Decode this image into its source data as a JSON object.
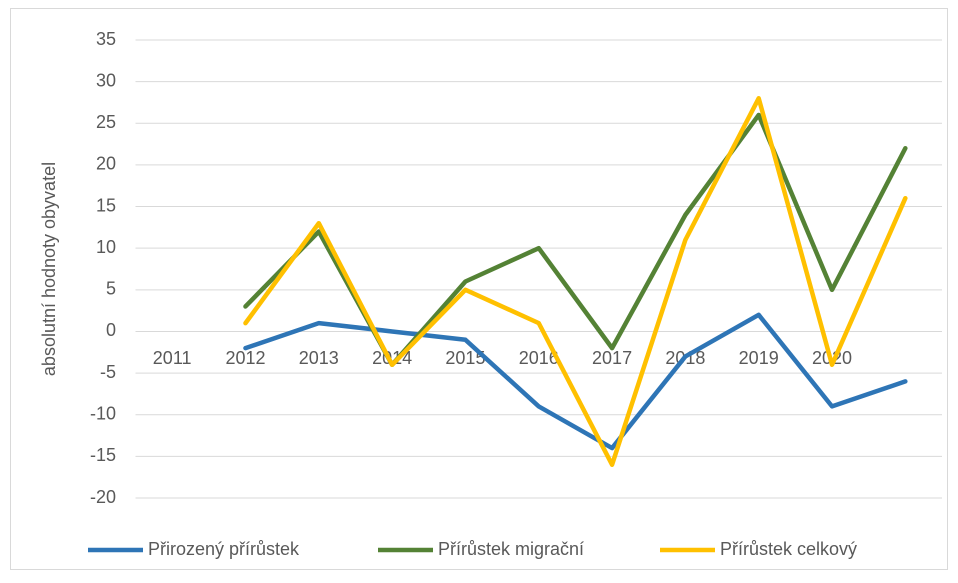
{
  "chart_data": {
    "type": "line",
    "y_axis_label": "absolutní hodnoty obyvatel",
    "categories": [
      "2011",
      "2012",
      "2013",
      "2014",
      "2015",
      "2016",
      "2017",
      "2018",
      "2019",
      "2020",
      null
    ],
    "series": [
      {
        "name": "Přirozený přírůstek",
        "color": "#2e75b6",
        "values": [
          null,
          -2,
          1,
          0,
          -1,
          -9,
          -14,
          -3,
          2,
          -9,
          -6
        ]
      },
      {
        "name": "Přírůstek migrační",
        "color": "#548235",
        "values": [
          null,
          3,
          12,
          -4,
          6,
          10,
          -2,
          14,
          26,
          5,
          22
        ]
      },
      {
        "name": "Přírůstek celkový",
        "color": "#ffc000",
        "values": [
          null,
          1,
          13,
          -4,
          5,
          1,
          -16,
          11,
          28,
          -4,
          16
        ]
      }
    ],
    "ylim": [
      -20,
      35
    ],
    "yticks": [
      -20,
      -15,
      -10,
      -5,
      0,
      5,
      10,
      15,
      20,
      25,
      30,
      35
    ],
    "grid": true,
    "legend": "bottom"
  }
}
